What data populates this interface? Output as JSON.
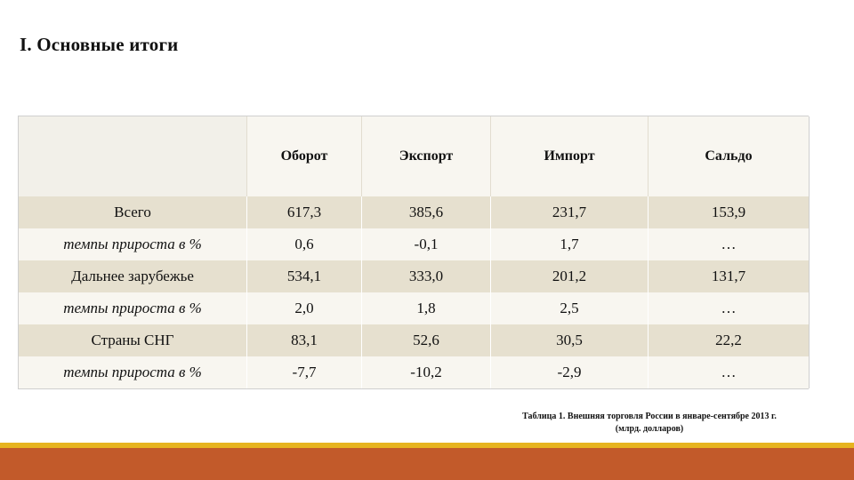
{
  "title": "I. Основные итоги",
  "table": {
    "columns": [
      "",
      "Оборот",
      "Экспорт",
      "Импорт",
      "Сальдо"
    ],
    "rows": [
      {
        "label": "Всего",
        "values": [
          "617,3",
          "385,6",
          "231,7",
          "153,9"
        ]
      },
      {
        "label": "темпы прироста в %",
        "values": [
          "0,6",
          "-0,1",
          "1,7",
          "…"
        ]
      },
      {
        "label": "Дальнее зарубежье",
        "values": [
          "534,1",
          "333,0",
          "201,2",
          "131,7"
        ]
      },
      {
        "label": "темпы прироста в %",
        "values": [
          "2,0",
          "1,8",
          "2,5",
          "…"
        ]
      },
      {
        "label": "Страны СНГ",
        "values": [
          "83,1",
          "52,6",
          "30,5",
          "22,2"
        ]
      },
      {
        "label": "темпы прироста в %",
        "values": [
          "-7,7",
          "-10,2",
          "-2,9",
          "…"
        ]
      }
    ]
  },
  "caption": {
    "line1": "Таблица 1. Внешняя торговля России в январе-сентябре 2013 г.",
    "line2": "(млрд. долларов)"
  },
  "colors": {
    "row_shaded": "#e6e0cf",
    "row_plain": "#f8f6f0",
    "footer_stripe": "#e7b420",
    "footer_band": "#c25a2a"
  }
}
